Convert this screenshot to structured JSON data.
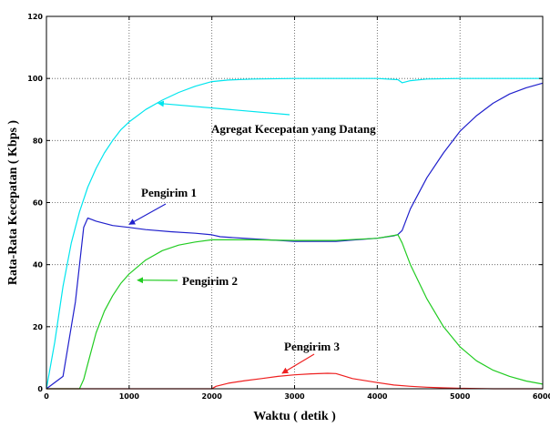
{
  "chart_data": {
    "type": "line",
    "xlabel": "Waktu ( detik )",
    "ylabel": "Rata-Rata Kecepatan  ( Kbps )",
    "xlim": [
      0,
      6000
    ],
    "ylim": [
      0,
      120
    ],
    "xticks": [
      0,
      1000,
      2000,
      3000,
      4000,
      5000,
      6000
    ],
    "yticks": [
      0,
      20,
      40,
      60,
      80,
      100,
      120
    ],
    "grid": true,
    "series": [
      {
        "name": "Agregat Kecepatan yang Datang",
        "color": "#00e5ee",
        "x": [
          0,
          100,
          200,
          300,
          400,
          500,
          600,
          700,
          800,
          900,
          1000,
          1200,
          1400,
          1600,
          1800,
          2000,
          2200,
          2500,
          3000,
          3500,
          4000,
          4250,
          4300,
          4400,
          4600,
          5000,
          5500,
          6000
        ],
        "y": [
          0,
          15,
          33,
          47,
          57,
          65,
          71,
          76,
          80,
          83.5,
          86,
          90,
          93,
          95.5,
          97.5,
          99,
          99.5,
          99.8,
          100,
          100,
          100,
          99.6,
          98.6,
          99.3,
          99.8,
          100,
          100,
          100
        ]
      },
      {
        "name": "Pengirim 1",
        "color": "#2020cc",
        "x": [
          0,
          200,
          350,
          450,
          500,
          550,
          600,
          700,
          800,
          1000,
          1200,
          1500,
          1800,
          2000,
          2100,
          2500,
          3000,
          3500,
          4000,
          4200,
          4250,
          4300,
          4400,
          4600,
          4800,
          5000,
          5200,
          5400,
          5600,
          5800,
          6000
        ],
        "y": [
          0,
          4,
          28,
          52,
          55,
          54.5,
          54,
          53.3,
          52.6,
          52,
          51.3,
          50.6,
          50.1,
          49.6,
          49,
          48.3,
          47.5,
          47.5,
          48.5,
          49.3,
          49.7,
          51,
          58,
          68,
          76,
          83,
          88,
          92,
          95,
          97,
          98.5
        ]
      },
      {
        "name": "Pengirim 2",
        "color": "#22cc22",
        "x": [
          0,
          400,
          450,
          500,
          600,
          700,
          800,
          900,
          1000,
          1200,
          1400,
          1600,
          1800,
          2000,
          2500,
          3000,
          3500,
          4000,
          4250,
          4300,
          4400,
          4600,
          4800,
          5000,
          5200,
          5400,
          5600,
          5800,
          6000
        ],
        "y": [
          0,
          0,
          3,
          8,
          18,
          25,
          30,
          34,
          37,
          41.5,
          44.5,
          46.3,
          47.3,
          48,
          48,
          47.8,
          47.8,
          48.5,
          49.6,
          47,
          40,
          29,
          20,
          13.5,
          9,
          6,
          4,
          2.5,
          1.5
        ]
      },
      {
        "name": "Pengirim 3",
        "color": "#ee2020",
        "x": [
          0,
          2000,
          2050,
          2200,
          2400,
          2600,
          2800,
          3000,
          3200,
          3400,
          3500,
          3700,
          4000,
          4200,
          4400,
          4600,
          4800,
          5000,
          5200,
          5400,
          5600,
          6000
        ],
        "y": [
          0,
          0,
          0.8,
          1.8,
          2.6,
          3.3,
          4,
          4.5,
          4.8,
          5,
          4.9,
          3.3,
          2,
          1.2,
          0.8,
          0.5,
          0.3,
          0.15,
          0.1,
          0,
          0,
          0
        ]
      }
    ],
    "annotations": [
      {
        "text": "Agregat Kecepatan yang Datang",
        "series": 0,
        "arrow_to": [
          1350,
          92
        ]
      },
      {
        "text": "Pengirim 1",
        "series": 1,
        "arrow_to": [
          1000,
          53
        ]
      },
      {
        "text": "Pengirim 2",
        "series": 2,
        "arrow_to": [
          1100,
          35
        ]
      },
      {
        "text": "Pengirim 3",
        "series": 3,
        "arrow_to": [
          2850,
          5
        ]
      }
    ]
  }
}
